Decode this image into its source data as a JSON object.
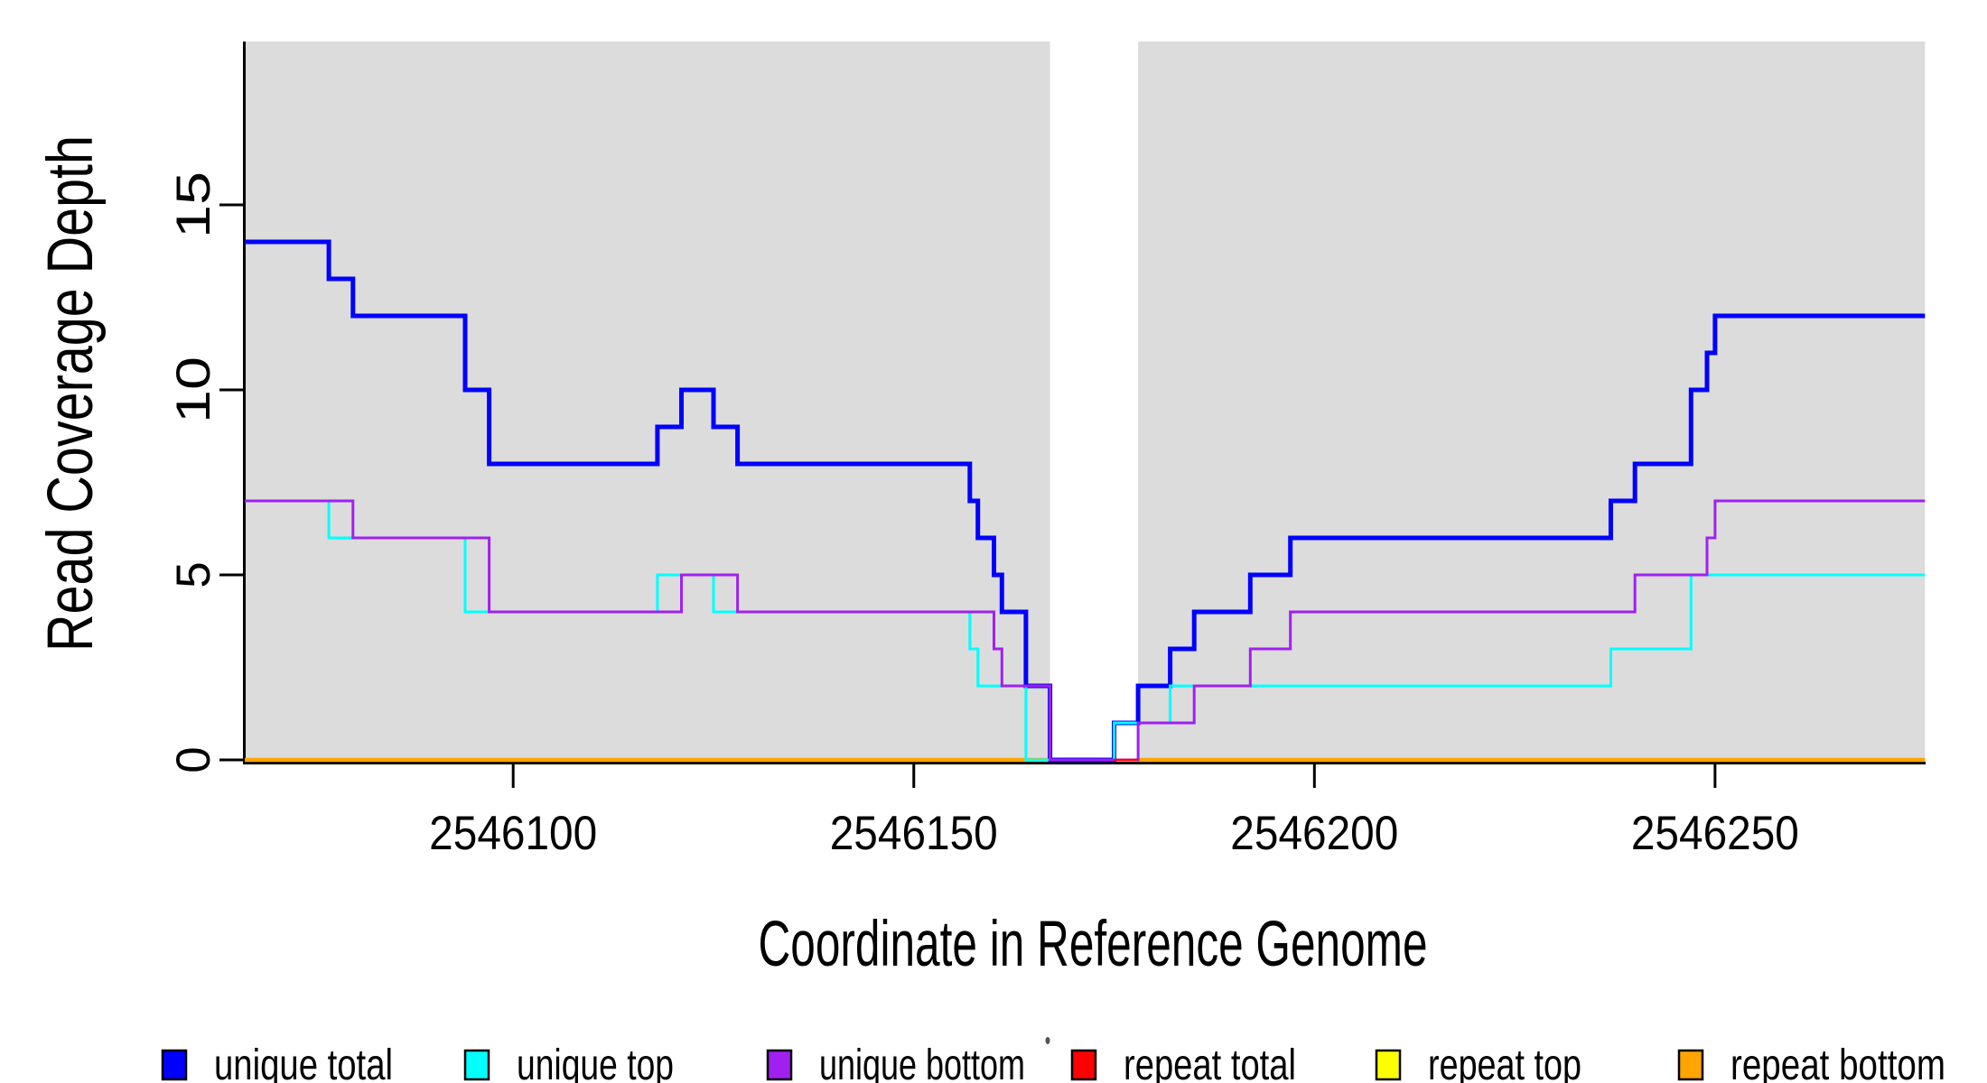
{
  "chart_data": {
    "type": "line",
    "subtype": "step-coverage-plot",
    "title": "",
    "xlabel": "Coordinate in Reference Genome",
    "ylabel": "Read Coverage Depth",
    "xlim": [
      2546066.5,
      2546276.2
    ],
    "ylim": [
      0,
      19.4
    ],
    "grid": false,
    "xticks": {
      "values": [
        2546100,
        2546150,
        2546200,
        2546250
      ],
      "labels": [
        "2546100",
        "2546150",
        "2546200",
        "2546250"
      ]
    },
    "yticks": {
      "values": [
        0,
        5,
        10,
        15
      ],
      "labels": [
        "0",
        "5",
        "10",
        "15"
      ]
    },
    "shaded_regions": {
      "color": "#DCDCDC",
      "spans": [
        [
          2546066.5,
          2546167
        ],
        [
          2546178,
          2546276.2
        ]
      ]
    },
    "series": [
      {
        "name": "repeat total",
        "color": "#FF0000",
        "width": 2.5,
        "start_value": 0,
        "changes": [],
        "spans": [
          [
            2546066.5,
            2546276.2
          ]
        ]
      },
      {
        "name": "repeat top",
        "color": "#FFFF00",
        "width": 3,
        "start_value": 0,
        "changes": [],
        "spans": [
          [
            2546066.5,
            2546167
          ],
          [
            2546178,
            2546276.2
          ]
        ]
      },
      {
        "name": "repeat bottom",
        "color": "#FFA500",
        "width": 4.5,
        "start_value": 0,
        "changes": [],
        "spans": [
          [
            2546066.5,
            2546167
          ],
          [
            2546178,
            2546276.2
          ]
        ]
      },
      {
        "name": "unique total",
        "color": "#0000FF",
        "width": 5,
        "start_value": 14,
        "changes": [
          [
            2546077,
            13
          ],
          [
            2546080,
            12
          ],
          [
            2546094,
            10
          ],
          [
            2546097,
            8
          ],
          [
            2546118,
            9
          ],
          [
            2546121,
            10
          ],
          [
            2546125,
            9
          ],
          [
            2546128,
            8
          ],
          [
            2546157,
            7
          ],
          [
            2546158,
            6
          ],
          [
            2546160,
            5
          ],
          [
            2546161,
            4
          ],
          [
            2546164,
            2
          ],
          [
            2546167,
            0
          ],
          [
            2546175,
            1
          ],
          [
            2546178,
            2
          ],
          [
            2546182,
            3
          ],
          [
            2546185,
            4
          ],
          [
            2546192,
            5
          ],
          [
            2546197,
            6
          ],
          [
            2546237,
            7
          ],
          [
            2546240,
            8
          ],
          [
            2546247,
            10
          ],
          [
            2546249,
            11
          ],
          [
            2546250,
            12
          ]
        ]
      },
      {
        "name": "unique top",
        "color": "#00FFFF",
        "width": 3,
        "start_value": 7,
        "changes": [
          [
            2546077,
            6
          ],
          [
            2546094,
            4
          ],
          [
            2546118,
            5
          ],
          [
            2546125,
            4
          ],
          [
            2546157,
            3
          ],
          [
            2546158,
            2
          ],
          [
            2546164,
            0
          ],
          [
            2546175,
            1
          ],
          [
            2546182,
            2
          ],
          [
            2546237,
            3
          ],
          [
            2546247,
            5
          ]
        ]
      },
      {
        "name": "unique bottom",
        "color": "#A020F0",
        "width": 3,
        "start_value": 7,
        "changes": [
          [
            2546080,
            6
          ],
          [
            2546097,
            4
          ],
          [
            2546121,
            5
          ],
          [
            2546128,
            4
          ],
          [
            2546160,
            3
          ],
          [
            2546161,
            2
          ],
          [
            2546167,
            0
          ],
          [
            2546178,
            1
          ],
          [
            2546185,
            2
          ],
          [
            2546192,
            3
          ],
          [
            2546197,
            4
          ],
          [
            2546240,
            5
          ],
          [
            2546249,
            6
          ],
          [
            2546250,
            7
          ]
        ]
      }
    ],
    "overlay_segments": [
      {
        "color": "#FF0000",
        "width": 2.5,
        "value": 0,
        "from": 2546175,
        "to": 2546178
      }
    ],
    "legend": [
      {
        "label": "unique total",
        "color": "#0000FF"
      },
      {
        "label": "unique top",
        "color": "#00FFFF"
      },
      {
        "label": "unique bottom",
        "color": "#A020F0"
      },
      {
        "label": "repeat total",
        "color": "#FF0000"
      },
      {
        "label": "repeat top",
        "color": "#FFFF00"
      },
      {
        "label": "repeat bottom",
        "color": "#FFA500"
      }
    ],
    "legend_position": "bottom"
  }
}
